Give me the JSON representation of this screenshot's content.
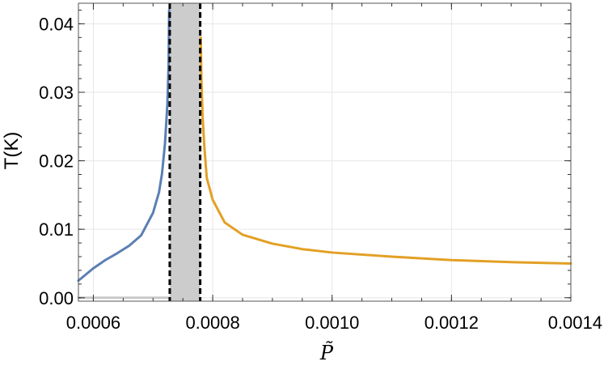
{
  "chart_data": {
    "type": "line",
    "xlabel": "P̃",
    "ylabel": "T(K)",
    "xlim": [
      0.000575,
      0.0014
    ],
    "ylim": [
      -0.0005,
      0.043
    ],
    "x_ticks": [
      0.0006,
      0.0008,
      0.001,
      0.0012,
      0.0014
    ],
    "x_tick_labels": [
      "0.0006",
      "0.0008",
      "0.0010",
      "0.0012",
      "0.0014"
    ],
    "y_ticks": [
      0.0,
      0.01,
      0.02,
      0.03,
      0.04
    ],
    "y_tick_labels": [
      "0.00",
      "0.01",
      "0.02",
      "0.03",
      "0.04"
    ],
    "grid": true,
    "shaded_region": {
      "x_start": 0.000728,
      "x_end": 0.000779,
      "color": "#cccccc",
      "boundary_style": "dashed",
      "boundary_color": "#000000"
    },
    "series": [
      {
        "color": "#5b7fb4",
        "x": [
          0.000575,
          0.0006,
          0.00062,
          0.00064,
          0.00066,
          0.00068,
          0.0007,
          0.00071,
          0.000715,
          0.00072,
          0.000724,
          0.000726,
          0.000727
        ],
        "y": [
          0.0025,
          0.0043,
          0.0055,
          0.0065,
          0.0076,
          0.0091,
          0.0124,
          0.0154,
          0.0181,
          0.0225,
          0.0282,
          0.034,
          0.042
        ]
      },
      {
        "color": "#e3a025",
        "x": [
          0.00078,
          0.000781,
          0.000783,
          0.000786,
          0.00079,
          0.0008,
          0.00082,
          0.00085,
          0.0009,
          0.00095,
          0.001,
          0.0011,
          0.0012,
          0.0013,
          0.0014
        ],
        "y": [
          0.038,
          0.032,
          0.0265,
          0.022,
          0.0175,
          0.0143,
          0.011,
          0.0092,
          0.0079,
          0.0071,
          0.0066,
          0.006,
          0.0055,
          0.0052,
          0.005
        ]
      },
      {
        "color": "#c8c8c8",
        "x": [
          0.000575,
          0.000728
        ],
        "y": [
          0.0,
          0.0
        ]
      }
    ]
  }
}
